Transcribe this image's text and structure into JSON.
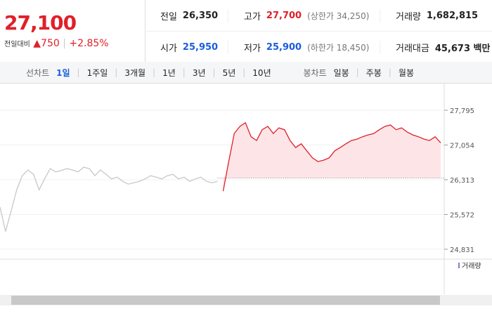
{
  "header": {
    "price": "27,100",
    "change_label": "전일대비",
    "change": "750",
    "change_pct": "+2.85%",
    "stats": [
      [
        {
          "label": "전일",
          "value": "26,350"
        },
        {
          "label": "고가",
          "value": "27,700",
          "note": "(상한가 34,250)"
        },
        {
          "label": "거래량",
          "value": "1,682,815"
        }
      ],
      [
        {
          "label": "시가",
          "value": "25,950"
        },
        {
          "label": "저가",
          "value": "25,900",
          "note": "(하한가 18,450)"
        },
        {
          "label": "거래대금",
          "value": "45,673 백만"
        }
      ]
    ]
  },
  "tabs": {
    "line_label": "선차트",
    "line": [
      "1일",
      "1주일",
      "3개월",
      "1년",
      "3년",
      "5년",
      "10년"
    ],
    "candle_label": "봉차트",
    "candle": [
      "일봉",
      "주봉",
      "월봉"
    ]
  },
  "chart_data": {
    "type": "line",
    "ylim": [
      24680,
      27930
    ],
    "yticks": [
      {
        "value": 27795,
        "label": "27,795"
      },
      {
        "value": 27054,
        "label": "27,054"
      },
      {
        "value": 26313,
        "label": "26,313"
      },
      {
        "value": 25572,
        "label": "25,572"
      },
      {
        "value": 24831,
        "label": "24,831"
      }
    ],
    "baseline": 26350,
    "volume_legend": "거래량",
    "series": [
      {
        "color": "#c8c8c8",
        "values": [
          25730,
          25210,
          25650,
          26100,
          26400,
          26520,
          26430,
          26100,
          26330,
          26550,
          26480,
          26510,
          26550,
          26520,
          26480,
          26580,
          26550,
          26400,
          26520,
          26430,
          26330,
          26370,
          26280,
          26220,
          26250,
          26280,
          26330,
          26400,
          26370,
          26330,
          26400,
          26430,
          26330,
          26370,
          26280,
          26330,
          26370,
          26280,
          26250,
          26280
        ]
      },
      {
        "color": "#e0202a",
        "fill": "#fde4e7",
        "values": [
          26070,
          26700,
          27300,
          27450,
          27530,
          27230,
          27150,
          27380,
          27450,
          27300,
          27420,
          27380,
          27150,
          27000,
          27080,
          26930,
          26780,
          26700,
          26730,
          26780,
          26930,
          27000,
          27080,
          27150,
          27180,
          27230,
          27270,
          27300,
          27380,
          27450,
          27480,
          27380,
          27420,
          27330,
          27270,
          27230,
          27180,
          27150,
          27230,
          27100
        ]
      }
    ]
  }
}
